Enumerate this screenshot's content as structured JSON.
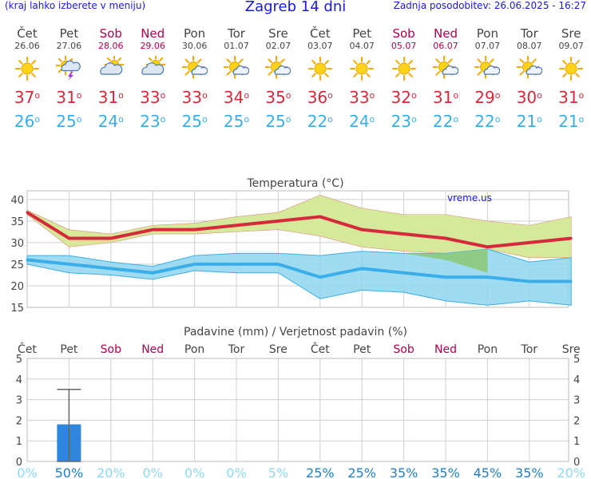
{
  "header": {
    "note": "(kraj lahko izberete v meniju)",
    "title": "Zagreb 14 dni",
    "updated": "Zadnja posodobitev: 26.06.2025 - 16:27"
  },
  "days": [
    {
      "name": "Čet",
      "date": "26.06",
      "weekend": false,
      "icon": "sun-icon",
      "max": "37",
      "min": "26"
    },
    {
      "name": "Pet",
      "date": "27.06",
      "weekend": false,
      "icon": "sun-cloud-thunder-icon",
      "max": "31",
      "min": "25"
    },
    {
      "name": "Sob",
      "date": "28.06",
      "weekend": true,
      "icon": "sun-cloud-icon",
      "max": "31",
      "min": "24"
    },
    {
      "name": "Ned",
      "date": "29.06",
      "weekend": true,
      "icon": "sun-cloud-icon",
      "max": "33",
      "min": "23"
    },
    {
      "name": "Pon",
      "date": "30.06",
      "weekend": false,
      "icon": "sun-small-cloud-icon",
      "max": "33",
      "min": "25"
    },
    {
      "name": "Tor",
      "date": "01.07",
      "weekend": false,
      "icon": "sun-small-cloud-icon",
      "max": "34",
      "min": "25"
    },
    {
      "name": "Sre",
      "date": "02.07",
      "weekend": false,
      "icon": "sun-small-cloud-icon",
      "max": "35",
      "min": "25"
    },
    {
      "name": "Čet",
      "date": "03.07",
      "weekend": false,
      "icon": "sun-icon",
      "max": "36",
      "min": "22"
    },
    {
      "name": "Pet",
      "date": "04.07",
      "weekend": false,
      "icon": "sun-icon",
      "max": "33",
      "min": "24"
    },
    {
      "name": "Sob",
      "date": "05.07",
      "weekend": true,
      "icon": "sun-icon",
      "max": "32",
      "min": "23"
    },
    {
      "name": "Ned",
      "date": "06.07",
      "weekend": true,
      "icon": "sun-small-cloud-icon",
      "max": "31",
      "min": "22"
    },
    {
      "name": "Pon",
      "date": "07.07",
      "weekend": false,
      "icon": "sun-small-cloud-icon",
      "max": "29",
      "min": "22"
    },
    {
      "name": "Tor",
      "date": "08.07",
      "weekend": false,
      "icon": "sun-small-cloud-icon",
      "max": "30",
      "min": "21"
    },
    {
      "name": "Sre",
      "date": "09.07",
      "weekend": false,
      "icon": "sun-icon",
      "max": "31",
      "min": "21"
    }
  ],
  "colors": {
    "max_line": "#d42a3c",
    "min_line": "#3aaee8",
    "max_band": "#d6e89a",
    "min_band": "#8fd6ee",
    "overlap": "#8cc97a",
    "bar": "#2e86de",
    "weekend": "#b0004e",
    "grid": "#d0d0d0",
    "watermark": "#1a1adc"
  },
  "chart_data": [
    {
      "type": "line",
      "title": "Temperatura (°C)",
      "watermark": "vreme.us",
      "ylim": [
        15,
        42
      ],
      "yticks": [
        15,
        20,
        25,
        30,
        35,
        40
      ],
      "grid": true,
      "categories": [
        "Čet",
        "Pet",
        "Sob",
        "Ned",
        "Pon",
        "Tor",
        "Sre",
        "Čet",
        "Pet",
        "Sob",
        "Ned",
        "Pon",
        "Tor",
        "Sre"
      ],
      "series": [
        {
          "values": [
            37,
            31,
            31,
            33,
            33,
            34,
            35,
            36,
            33,
            32,
            31,
            29,
            30,
            31
          ]
        },
        {
          "values": [
            37.5,
            33,
            32,
            34,
            34.5,
            36,
            37,
            41,
            38,
            36.5,
            36.5,
            35,
            34,
            36
          ]
        },
        {
          "values": [
            36.5,
            29,
            30,
            32,
            32,
            32.5,
            33,
            31.5,
            29,
            28,
            27.5,
            28.5,
            26.5,
            26.5
          ]
        },
        {
          "values": [
            26,
            25,
            24,
            23,
            25,
            25,
            25,
            22,
            24,
            23,
            22,
            22,
            21,
            21
          ]
        },
        {
          "values": [
            27,
            27,
            25.5,
            24.5,
            27,
            27.5,
            27.5,
            27,
            28,
            27.5,
            27.5,
            28.5,
            25.5,
            26.5
          ]
        },
        {
          "values": [
            25,
            23,
            22.5,
            21.5,
            23.5,
            23,
            23,
            17,
            19,
            18.5,
            16.5,
            15.5,
            16.5,
            15.5
          ]
        }
      ]
    },
    {
      "type": "bar",
      "title": "Padavine (mm) / Verjetnost padavin (%)",
      "ylim": [
        0,
        5
      ],
      "yticks": [
        0,
        1,
        2,
        3,
        4,
        5
      ],
      "grid": true,
      "categories": [
        "Čet",
        "Pet",
        "Sob",
        "Ned",
        "Pon",
        "Tor",
        "Sre",
        "Čet",
        "Pet",
        "Sob",
        "Ned",
        "Pon",
        "Tor",
        "Sre"
      ],
      "values": [
        0,
        1.8,
        0,
        0,
        0,
        0,
        0,
        0,
        0,
        0,
        0,
        0,
        0,
        0
      ],
      "error_high": [
        0,
        3.5,
        0,
        0,
        0,
        0,
        0,
        0,
        0,
        0,
        0,
        0,
        0,
        0
      ],
      "probabilities": [
        "0%",
        "50%",
        "20%",
        "0%",
        "0%",
        "0%",
        "5%",
        "25%",
        "25%",
        "35%",
        "35%",
        "45%",
        "35%",
        "20%"
      ]
    }
  ]
}
